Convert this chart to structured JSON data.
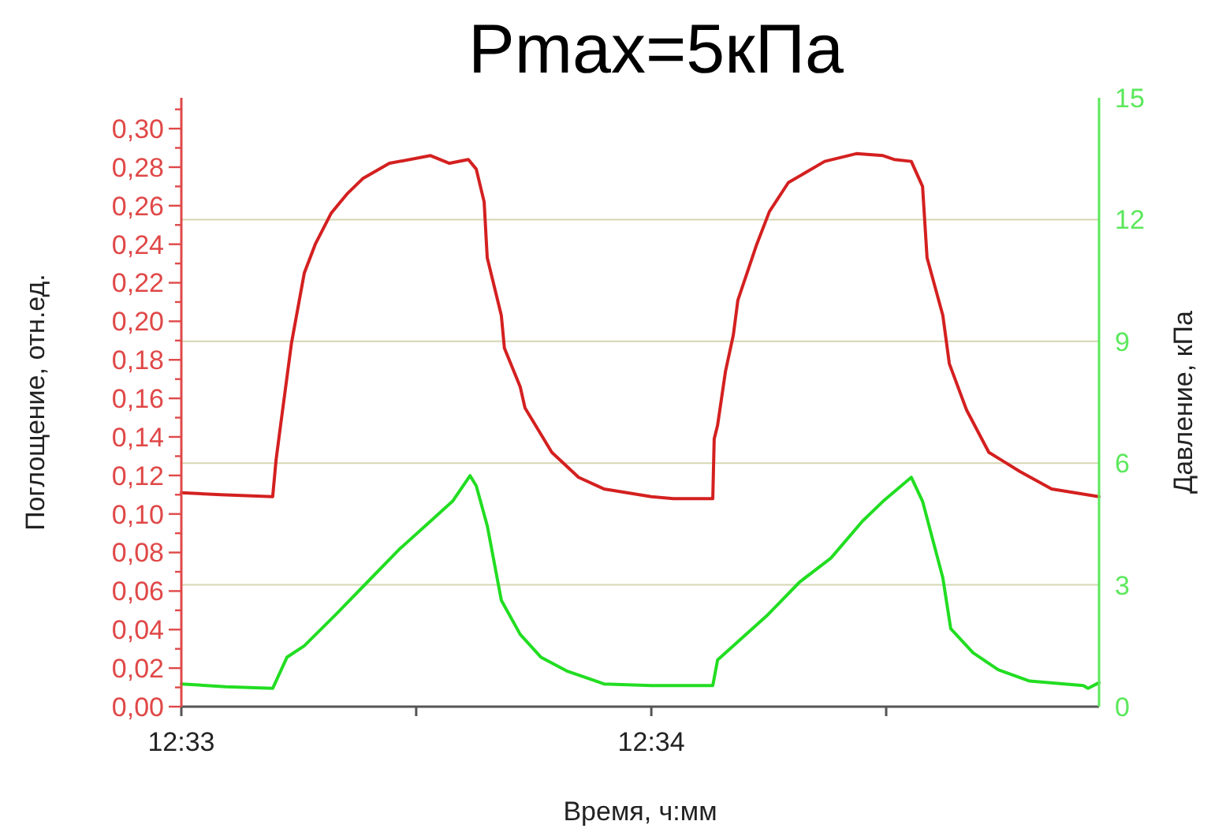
{
  "chart_data": {
    "type": "line",
    "title": "Pmax=5кПа",
    "xlabel": "Время, ч:мм",
    "ylabel": "Поглощение, отн.ед.",
    "y2label": "Давление, кПа",
    "grid": "y2",
    "marker": "none",
    "line_style": "solid",
    "xlim": [
      12.55,
      12.58255
    ],
    "xticks": [
      {
        "value": 12.55,
        "label": "12:33"
      },
      {
        "value": 12.55833,
        "label": null
      },
      {
        "value": 12.56667,
        "label": "12:34"
      },
      {
        "value": 12.575,
        "label": null
      }
    ],
    "ylim": [
      0,
      0.316
    ],
    "yticks": [
      {
        "value": 0,
        "label": "0,00"
      },
      {
        "value": 0.01,
        "label": null
      },
      {
        "value": 0.02,
        "label": "0,02"
      },
      {
        "value": 0.03,
        "label": null
      },
      {
        "value": 0.04,
        "label": "0,04"
      },
      {
        "value": 0.05,
        "label": null
      },
      {
        "value": 0.06,
        "label": "0,06"
      },
      {
        "value": 0.07,
        "label": null
      },
      {
        "value": 0.08,
        "label": "0,08"
      },
      {
        "value": 0.09,
        "label": null
      },
      {
        "value": 0.1,
        "label": "0,10"
      },
      {
        "value": 0.11,
        "label": null
      },
      {
        "value": 0.12,
        "label": "0,12"
      },
      {
        "value": 0.13,
        "label": null
      },
      {
        "value": 0.14,
        "label": "0,14"
      },
      {
        "value": 0.15,
        "label": null
      },
      {
        "value": 0.16,
        "label": "0,16"
      },
      {
        "value": 0.17,
        "label": null
      },
      {
        "value": 0.18,
        "label": "0,18"
      },
      {
        "value": 0.19,
        "label": null
      },
      {
        "value": 0.2,
        "label": "0,20"
      },
      {
        "value": 0.21,
        "label": null
      },
      {
        "value": 0.22,
        "label": "0,22"
      },
      {
        "value": 0.23,
        "label": null
      },
      {
        "value": 0.24,
        "label": "0,24"
      },
      {
        "value": 0.25,
        "label": null
      },
      {
        "value": 0.26,
        "label": "0,26"
      },
      {
        "value": 0.27,
        "label": null
      },
      {
        "value": 0.28,
        "label": "0,28"
      },
      {
        "value": 0.29,
        "label": null
      },
      {
        "value": 0.3,
        "label": "0,30"
      },
      {
        "value": 0.31,
        "label": null
      }
    ],
    "y2lim": [
      0,
      15
    ],
    "y2ticks": [
      0,
      3,
      6,
      9,
      12,
      15
    ],
    "series": [
      {
        "color": "#d42020",
        "x": [
          12.55,
          12.5514,
          12.55324,
          12.55336,
          12.55352,
          12.55391,
          12.55436,
          12.55475,
          12.55531,
          12.55587,
          12.55643,
          12.55738,
          12.55884,
          12.55951,
          12.56018,
          12.56046,
          12.56074,
          12.56085,
          12.56135,
          12.56146,
          12.56202,
          12.56219,
          12.56314,
          12.56409,
          12.56499,
          12.56667,
          12.56745,
          12.56885,
          12.5689,
          12.56902,
          12.5693,
          12.56958,
          12.56974,
          12.57041,
          12.57086,
          12.57153,
          12.57282,
          12.57394,
          12.57489,
          12.57528,
          12.57589,
          12.57629,
          12.57645,
          12.57701,
          12.57724,
          12.57785,
          12.57864,
          12.57975,
          12.58087,
          12.58255
        ],
        "values": [
          0.111,
          0.11,
          0.109,
          0.128,
          0.146,
          0.189,
          0.225,
          0.24,
          0.256,
          0.266,
          0.274,
          0.282,
          0.286,
          0.282,
          0.284,
          0.279,
          0.262,
          0.233,
          0.203,
          0.186,
          0.166,
          0.155,
          0.132,
          0.119,
          0.113,
          0.109,
          0.108,
          0.108,
          0.139,
          0.146,
          0.174,
          0.193,
          0.211,
          0.24,
          0.257,
          0.272,
          0.283,
          0.287,
          0.286,
          0.284,
          0.283,
          0.27,
          0.233,
          0.203,
          0.178,
          0.154,
          0.132,
          0.122,
          0.113,
          0.109
        ]
      },
      {
        "color": "#22dd22",
        "axis": "y2",
        "x": [
          12.55,
          12.55157,
          12.55324,
          12.55375,
          12.55436,
          12.55548,
          12.5566,
          12.55772,
          12.55884,
          12.55962,
          12.56024,
          12.56046,
          12.56085,
          12.56135,
          12.56202,
          12.56275,
          12.5637,
          12.56499,
          12.56667,
          12.56706,
          12.56885,
          12.56902,
          12.56969,
          12.57081,
          12.57193,
          12.57304,
          12.57416,
          12.57489,
          12.57589,
          12.57629,
          12.57701,
          12.57729,
          12.57808,
          12.57897,
          12.58009,
          12.58199,
          12.58216,
          12.58255
        ],
        "values": [
          0.56,
          0.49,
          0.45,
          1.22,
          1.5,
          2.27,
          3.07,
          3.87,
          4.57,
          5.06,
          5.69,
          5.44,
          4.46,
          2.62,
          1.78,
          1.22,
          0.87,
          0.56,
          0.52,
          0.52,
          0.52,
          1.15,
          1.57,
          2.27,
          3.07,
          3.66,
          4.57,
          5.06,
          5.65,
          5.06,
          3.17,
          1.92,
          1.33,
          0.91,
          0.63,
          0.52,
          0.45,
          0.59
        ]
      }
    ]
  }
}
